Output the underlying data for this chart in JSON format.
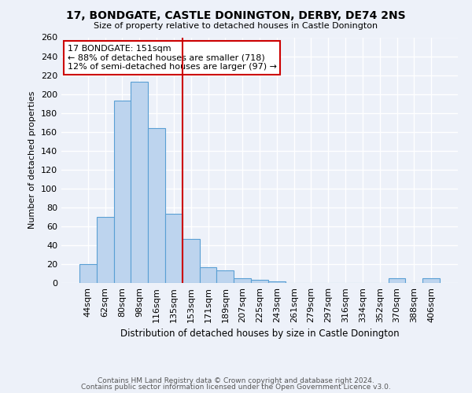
{
  "title": "17, BONDGATE, CASTLE DONINGTON, DERBY, DE74 2NS",
  "subtitle": "Size of property relative to detached houses in Castle Donington",
  "xlabel": "Distribution of detached houses by size in Castle Donington",
  "ylabel": "Number of detached properties",
  "bar_labels": [
    "44sqm",
    "62sqm",
    "80sqm",
    "98sqm",
    "116sqm",
    "135sqm",
    "153sqm",
    "171sqm",
    "189sqm",
    "207sqm",
    "225sqm",
    "243sqm",
    "261sqm",
    "279sqm",
    "297sqm",
    "316sqm",
    "334sqm",
    "352sqm",
    "370sqm",
    "388sqm",
    "406sqm"
  ],
  "bar_values": [
    20,
    70,
    193,
    213,
    164,
    73,
    47,
    17,
    13,
    5,
    3,
    2,
    0,
    0,
    0,
    0,
    0,
    0,
    5,
    0,
    5
  ],
  "bar_color": "#bdd4ee",
  "bar_edge_color": "#5a9fd4",
  "vline_color": "#cc0000",
  "annotation_text": "17 BONDGATE: 151sqm\n← 88% of detached houses are smaller (718)\n12% of semi-detached houses are larger (97) →",
  "annotation_box_color": "#ffffff",
  "annotation_box_edge": "#cc0000",
  "ylim": [
    0,
    260
  ],
  "yticks": [
    0,
    20,
    40,
    60,
    80,
    100,
    120,
    140,
    160,
    180,
    200,
    220,
    240,
    260
  ],
  "bg_color": "#edf1f9",
  "grid_color": "#ffffff",
  "footer1": "Contains HM Land Registry data © Crown copyright and database right 2024.",
  "footer2": "Contains public sector information licensed under the Open Government Licence v3.0."
}
